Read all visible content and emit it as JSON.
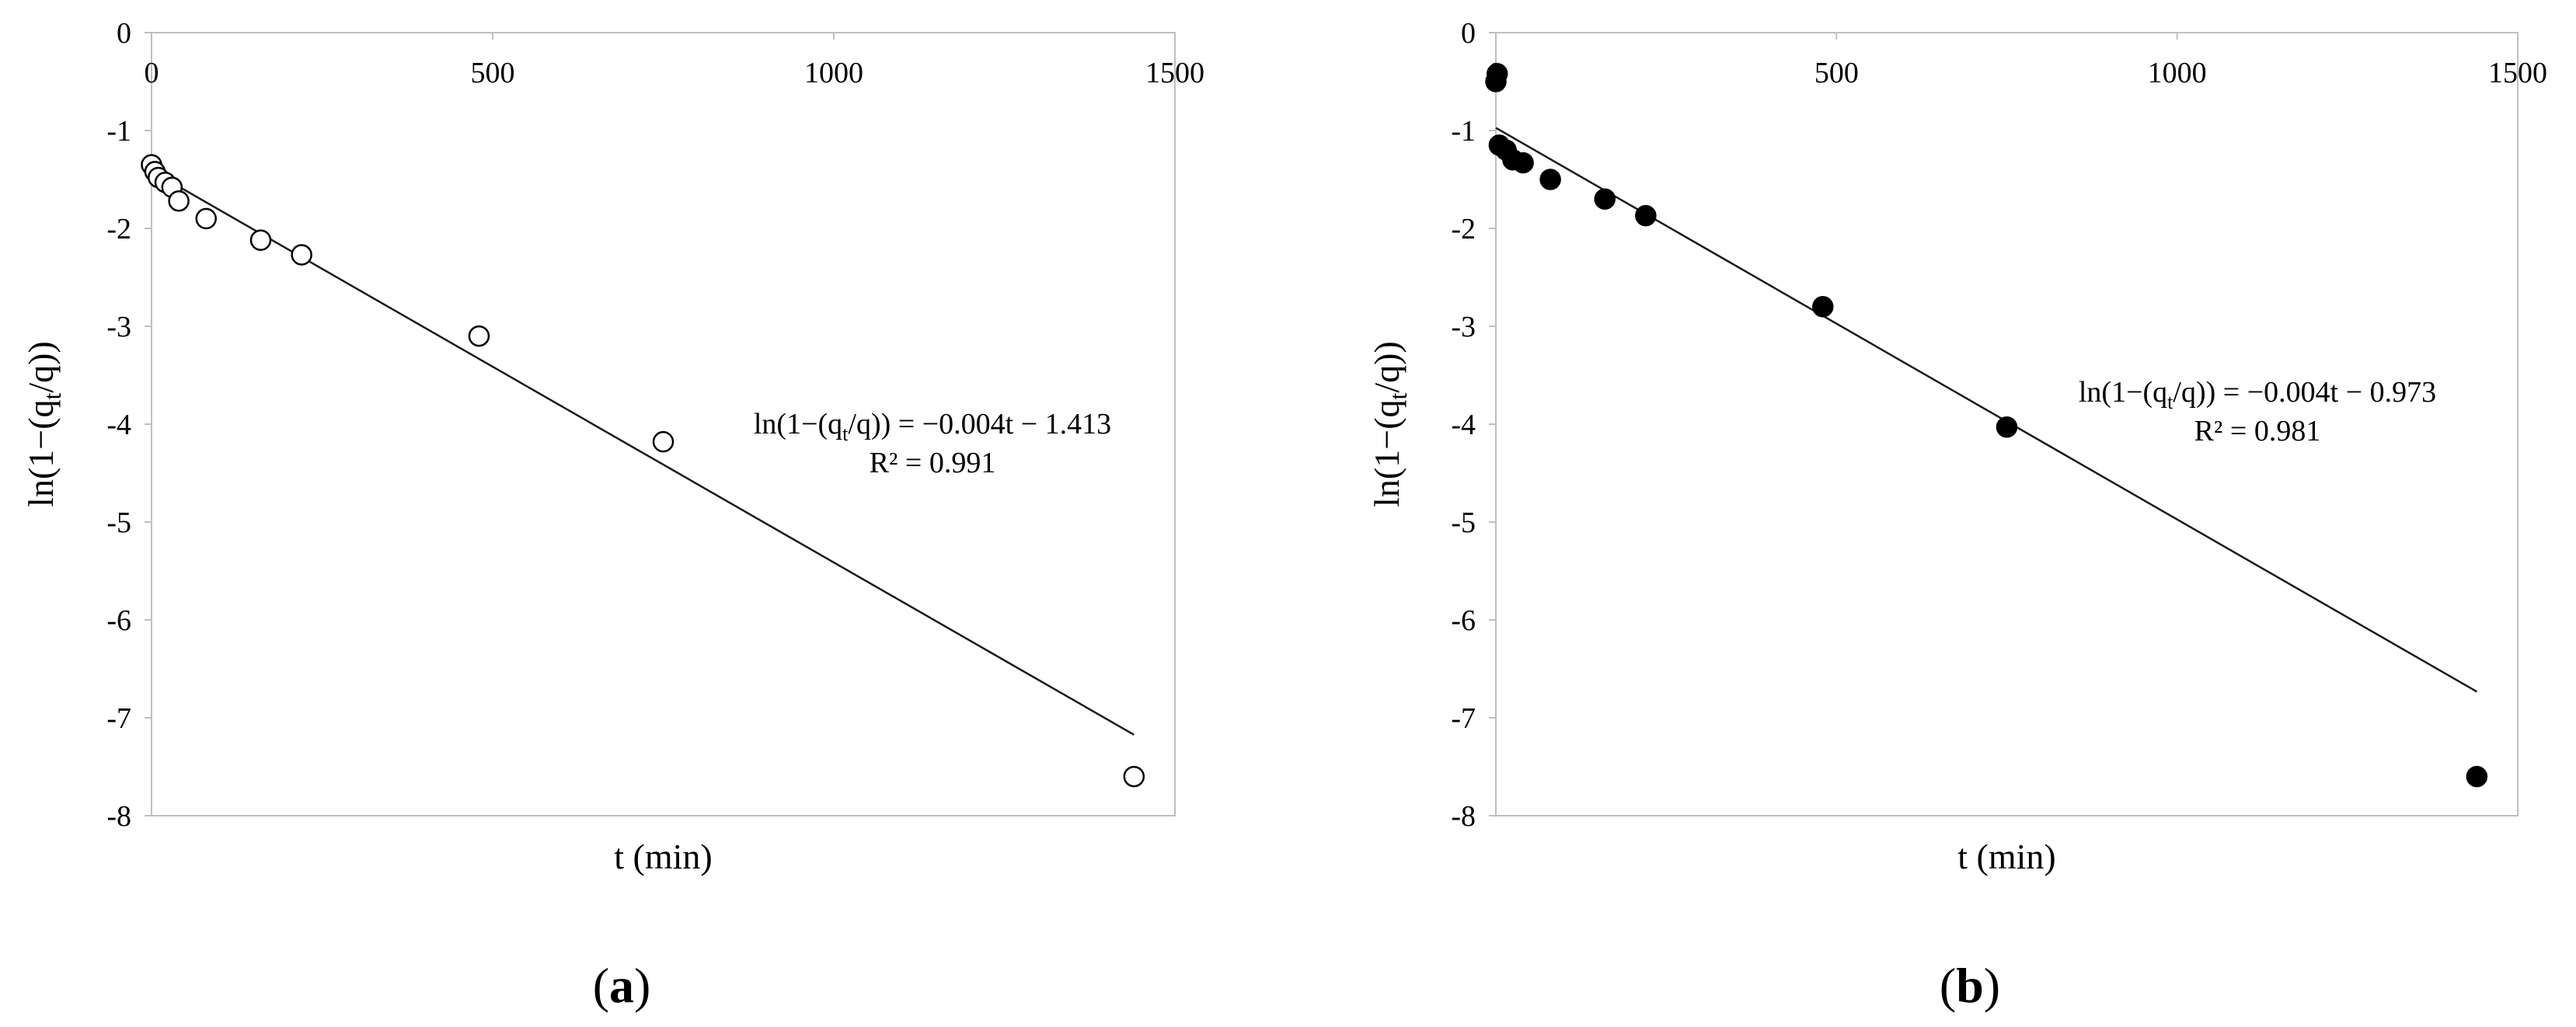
{
  "chart_data": [
    {
      "type": "scatter",
      "panel_label": "a",
      "xlabel": "t (min)",
      "ylabel_prefix": "ln(1−(q",
      "ylabel_sub": "t",
      "ylabel_suffix": "/q))",
      "xlim": [
        0,
        1500
      ],
      "ylim": [
        -8,
        0
      ],
      "xticks": [
        0,
        500,
        1000,
        1500
      ],
      "yticks": [
        0,
        -1,
        -2,
        -3,
        -4,
        -5,
        -6,
        -7,
        -8
      ],
      "x_axis_position": "top",
      "marker": "open-circle",
      "points": [
        {
          "x": 0,
          "y": -1.35
        },
        {
          "x": 5,
          "y": -1.42
        },
        {
          "x": 10,
          "y": -1.48
        },
        {
          "x": 20,
          "y": -1.53
        },
        {
          "x": 30,
          "y": -1.58
        },
        {
          "x": 40,
          "y": -1.72
        },
        {
          "x": 80,
          "y": -1.9
        },
        {
          "x": 160,
          "y": -2.12
        },
        {
          "x": 220,
          "y": -2.27
        },
        {
          "x": 480,
          "y": -3.1
        },
        {
          "x": 750,
          "y": -4.18
        },
        {
          "x": 1440,
          "y": -7.6
        }
      ],
      "trendline": {
        "slope": -0.004,
        "intercept": -1.413,
        "x_range": [
          0,
          1440
        ]
      },
      "equation_prefix": "ln(1−(q",
      "equation_sub": "t",
      "equation_suffix": "/q)) = −0.004t − 1.413",
      "r2_text": "R² = 0.991",
      "grid": false
    },
    {
      "type": "scatter",
      "panel_label": "b",
      "xlabel": "t (min)",
      "ylabel_prefix": "ln(1−(q",
      "ylabel_sub": "t",
      "ylabel_suffix": "/q))",
      "xlim": [
        0,
        1500
      ],
      "ylim": [
        -8,
        0
      ],
      "xticks": [
        0,
        500,
        1000,
        1500
      ],
      "yticks": [
        0,
        -1,
        -2,
        -3,
        -4,
        -5,
        -6,
        -7,
        -8
      ],
      "x_axis_position": "top",
      "marker": "filled-circle",
      "points": [
        {
          "x": 0,
          "y": -0.5
        },
        {
          "x": 2,
          "y": -0.42
        },
        {
          "x": 5,
          "y": -1.15
        },
        {
          "x": 15,
          "y": -1.2
        },
        {
          "x": 25,
          "y": -1.3
        },
        {
          "x": 40,
          "y": -1.33
        },
        {
          "x": 80,
          "y": -1.5
        },
        {
          "x": 160,
          "y": -1.7
        },
        {
          "x": 220,
          "y": -1.87
        },
        {
          "x": 480,
          "y": -2.8
        },
        {
          "x": 750,
          "y": -4.03
        },
        {
          "x": 1440,
          "y": -7.6
        }
      ],
      "trendline": {
        "slope": -0.004,
        "intercept": -0.973,
        "x_range": [
          0,
          1440
        ]
      },
      "equation_prefix": "ln(1−(q",
      "equation_sub": "t",
      "equation_suffix": "/q)) = −0.004t − 0.973",
      "r2_text": "R² = 0.981",
      "grid": false
    }
  ],
  "colors": {
    "background": "#ffffff",
    "axis": "#bfbfbf",
    "ink": "#000000",
    "trendline": "#1a1a1a"
  }
}
